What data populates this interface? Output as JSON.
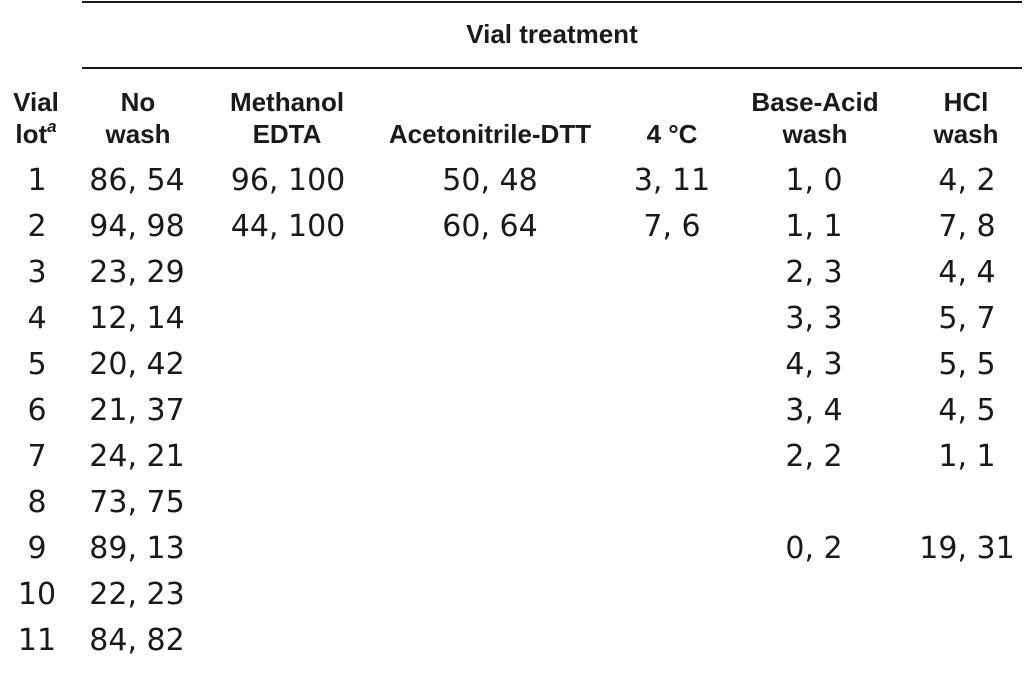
{
  "table": {
    "group_header": "Vial treatment",
    "header_lot": {
      "line1": "Vial",
      "line2": "lot",
      "footnote": "a"
    },
    "columns": [
      {
        "line1": "No",
        "line2": "wash"
      },
      {
        "line1": "Methanol",
        "line2": "EDTA"
      },
      {
        "line1": "",
        "line2": "Acetonitrile-DTT"
      },
      {
        "line1": "",
        "line2": "4 °C"
      },
      {
        "line1": "Base-Acid",
        "line2": "wash"
      },
      {
        "line1": "HCl",
        "line2": "wash"
      }
    ],
    "rows": [
      {
        "lot": "1",
        "cells": [
          "86, 54",
          "96, 100",
          "50, 48",
          "3, 11",
          "1, 0",
          "4, 2"
        ]
      },
      {
        "lot": "2",
        "cells": [
          "94, 98",
          "44, 100",
          "60, 64",
          "7, 6",
          "1, 1",
          "7, 8"
        ]
      },
      {
        "lot": "3",
        "cells": [
          "23, 29",
          "",
          "",
          "",
          "2, 3",
          "4, 4"
        ]
      },
      {
        "lot": "4",
        "cells": [
          "12, 14",
          "",
          "",
          "",
          "3, 3",
          "5, 7"
        ]
      },
      {
        "lot": "5",
        "cells": [
          "20, 42",
          "",
          "",
          "",
          "4, 3",
          "5, 5"
        ]
      },
      {
        "lot": "6",
        "cells": [
          "21, 37",
          "",
          "",
          "",
          "3, 4",
          "4, 5"
        ]
      },
      {
        "lot": "7",
        "cells": [
          "24, 21",
          "",
          "",
          "",
          "2, 2",
          "1, 1"
        ]
      },
      {
        "lot": "8",
        "cells": [
          "73, 75",
          "",
          "",
          "",
          "",
          ""
        ]
      },
      {
        "lot": "9",
        "cells": [
          "89, 13",
          "",
          "",
          "",
          "0, 2",
          "19, 31"
        ]
      },
      {
        "lot": "10",
        "cells": [
          "22, 23",
          "",
          "",
          "",
          "",
          ""
        ]
      },
      {
        "lot": "11",
        "cells": [
          "84, 82",
          "",
          "",
          "",
          "",
          ""
        ]
      }
    ]
  }
}
